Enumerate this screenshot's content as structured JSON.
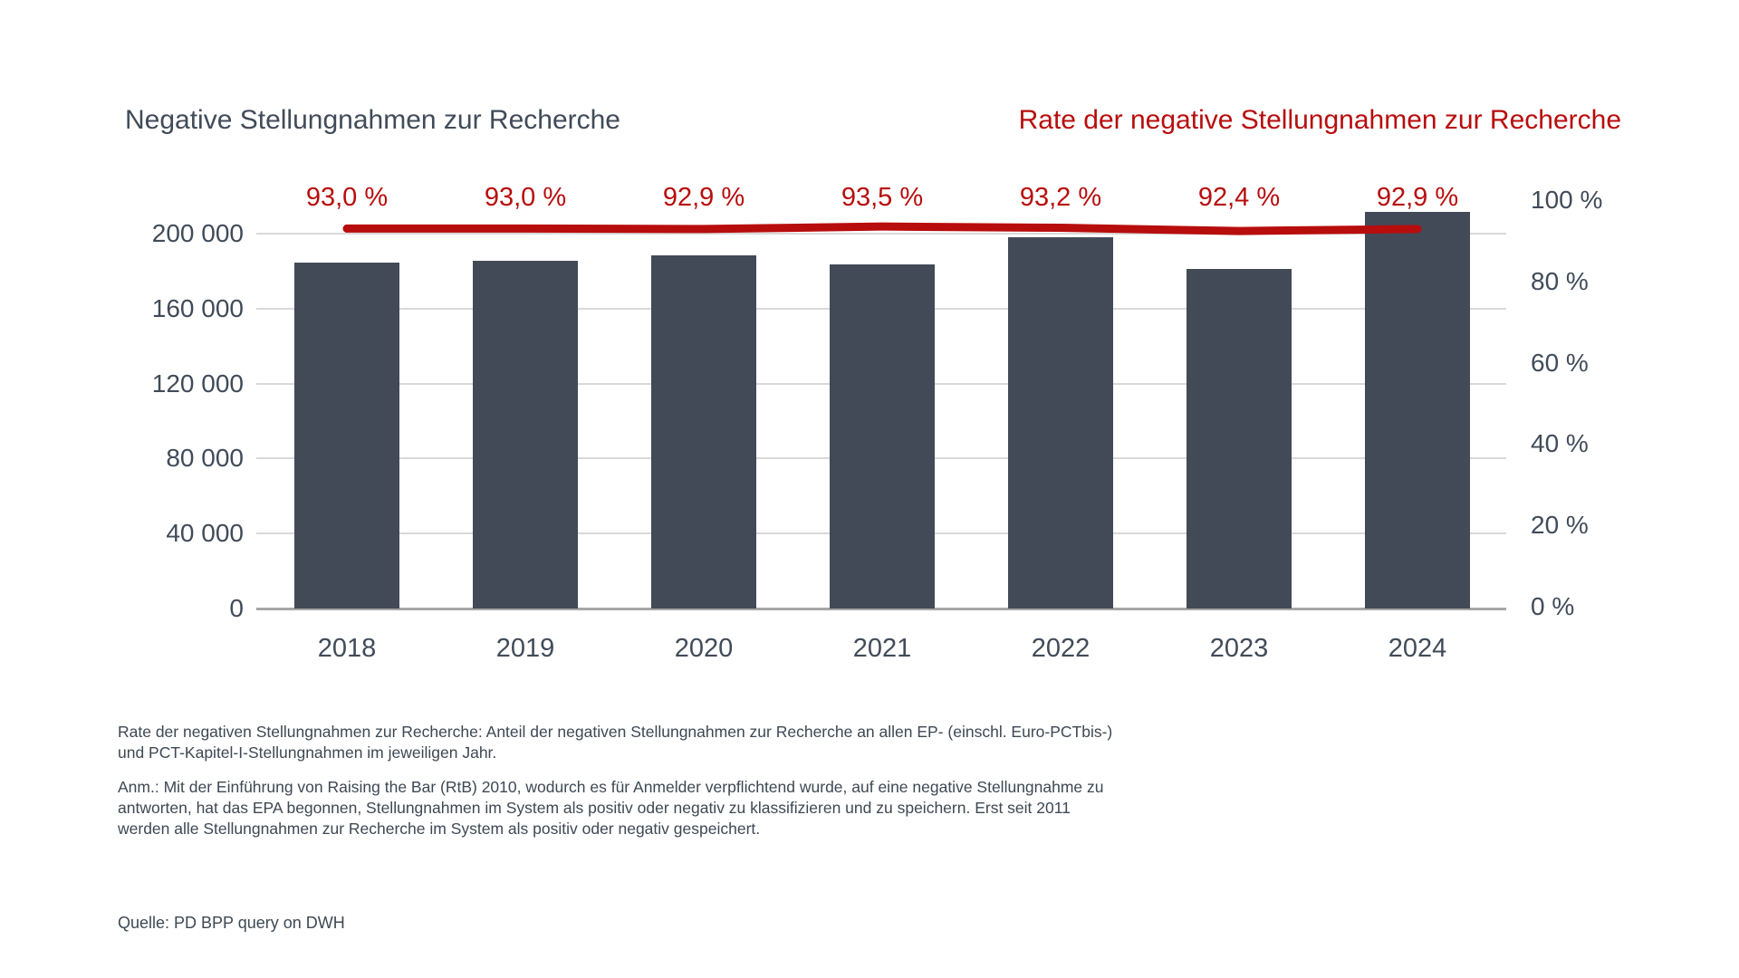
{
  "titles": {
    "left": "Negative Stellungnahmen zur Recherche",
    "right": "Rate der negative Stellungnahmen zur Recherche"
  },
  "colors": {
    "bar": "#424A57",
    "slate_text": "#414B59",
    "rate_red": "#B80D0D",
    "gridline": "#D9D9D9",
    "axis_line": "#A6A6A6"
  },
  "chart_data": {
    "type": "bar",
    "title": "Negative Stellungnahmen zur Recherche",
    "secondary_title": "Rate der negative Stellungnahmen zur Recherche",
    "categories": [
      "2018",
      "2019",
      "2020",
      "2021",
      "2022",
      "2023",
      "2024"
    ],
    "series": [
      {
        "name": "Negative Stellungnahmen zur Recherche",
        "type": "bar",
        "axis": "left",
        "values": [
          184500,
          185500,
          188400,
          183500,
          198100,
          181100,
          211700
        ]
      },
      {
        "name": "Rate der negative Stellungnahmen zur Recherche",
        "type": "line",
        "axis": "right",
        "values": [
          93.0,
          93.0,
          92.9,
          93.5,
          93.2,
          92.4,
          92.9
        ],
        "point_labels": [
          "93,0 %",
          "93,0 %",
          "92,9 %",
          "93,5 %",
          "93,2 %",
          "92,4 %",
          "92,9 %"
        ]
      }
    ],
    "left_axis": {
      "min": 0,
      "max": 200000,
      "tick_values": [
        0,
        40000,
        80000,
        120000,
        160000,
        200000
      ],
      "tick_labels": [
        "0",
        "40 000",
        "80 000",
        "120 000",
        "160 000",
        "200 000"
      ]
    },
    "right_axis": {
      "min": 0,
      "max": 100,
      "tick_values": [
        0,
        20,
        40,
        60,
        80,
        100
      ],
      "tick_labels": [
        "0 %",
        "20 %",
        "40 %",
        "60 %",
        "80 %",
        "100 %"
      ]
    },
    "grid": true,
    "legend_position": "none"
  },
  "notes": {
    "definition_lines": [
      "Rate der negativen Stellungnahmen zur Recherche: Anteil der negativen Stellungnahmen zur Recherche an allen EP- (einschl. Euro-PCTbis-)",
      "und PCT-Kapitel-I-Stellungnahmen im jeweiligen Jahr."
    ],
    "anm_lines": [
      "Anm.: Mit der Einführung von Raising the Bar (RtB) 2010, wodurch es für Anmelder verpflichtend wurde, auf eine negative Stellungnahme zu",
      "antworten, hat das EPA begonnen, Stellungnahmen im System als positiv oder negativ zu klassifizieren und zu speichern. Erst seit 2011",
      "werden alle Stellungnahmen zur Recherche im System als positiv oder negativ gespeichert."
    ],
    "source": "Quelle: PD BPP query on DWH"
  }
}
